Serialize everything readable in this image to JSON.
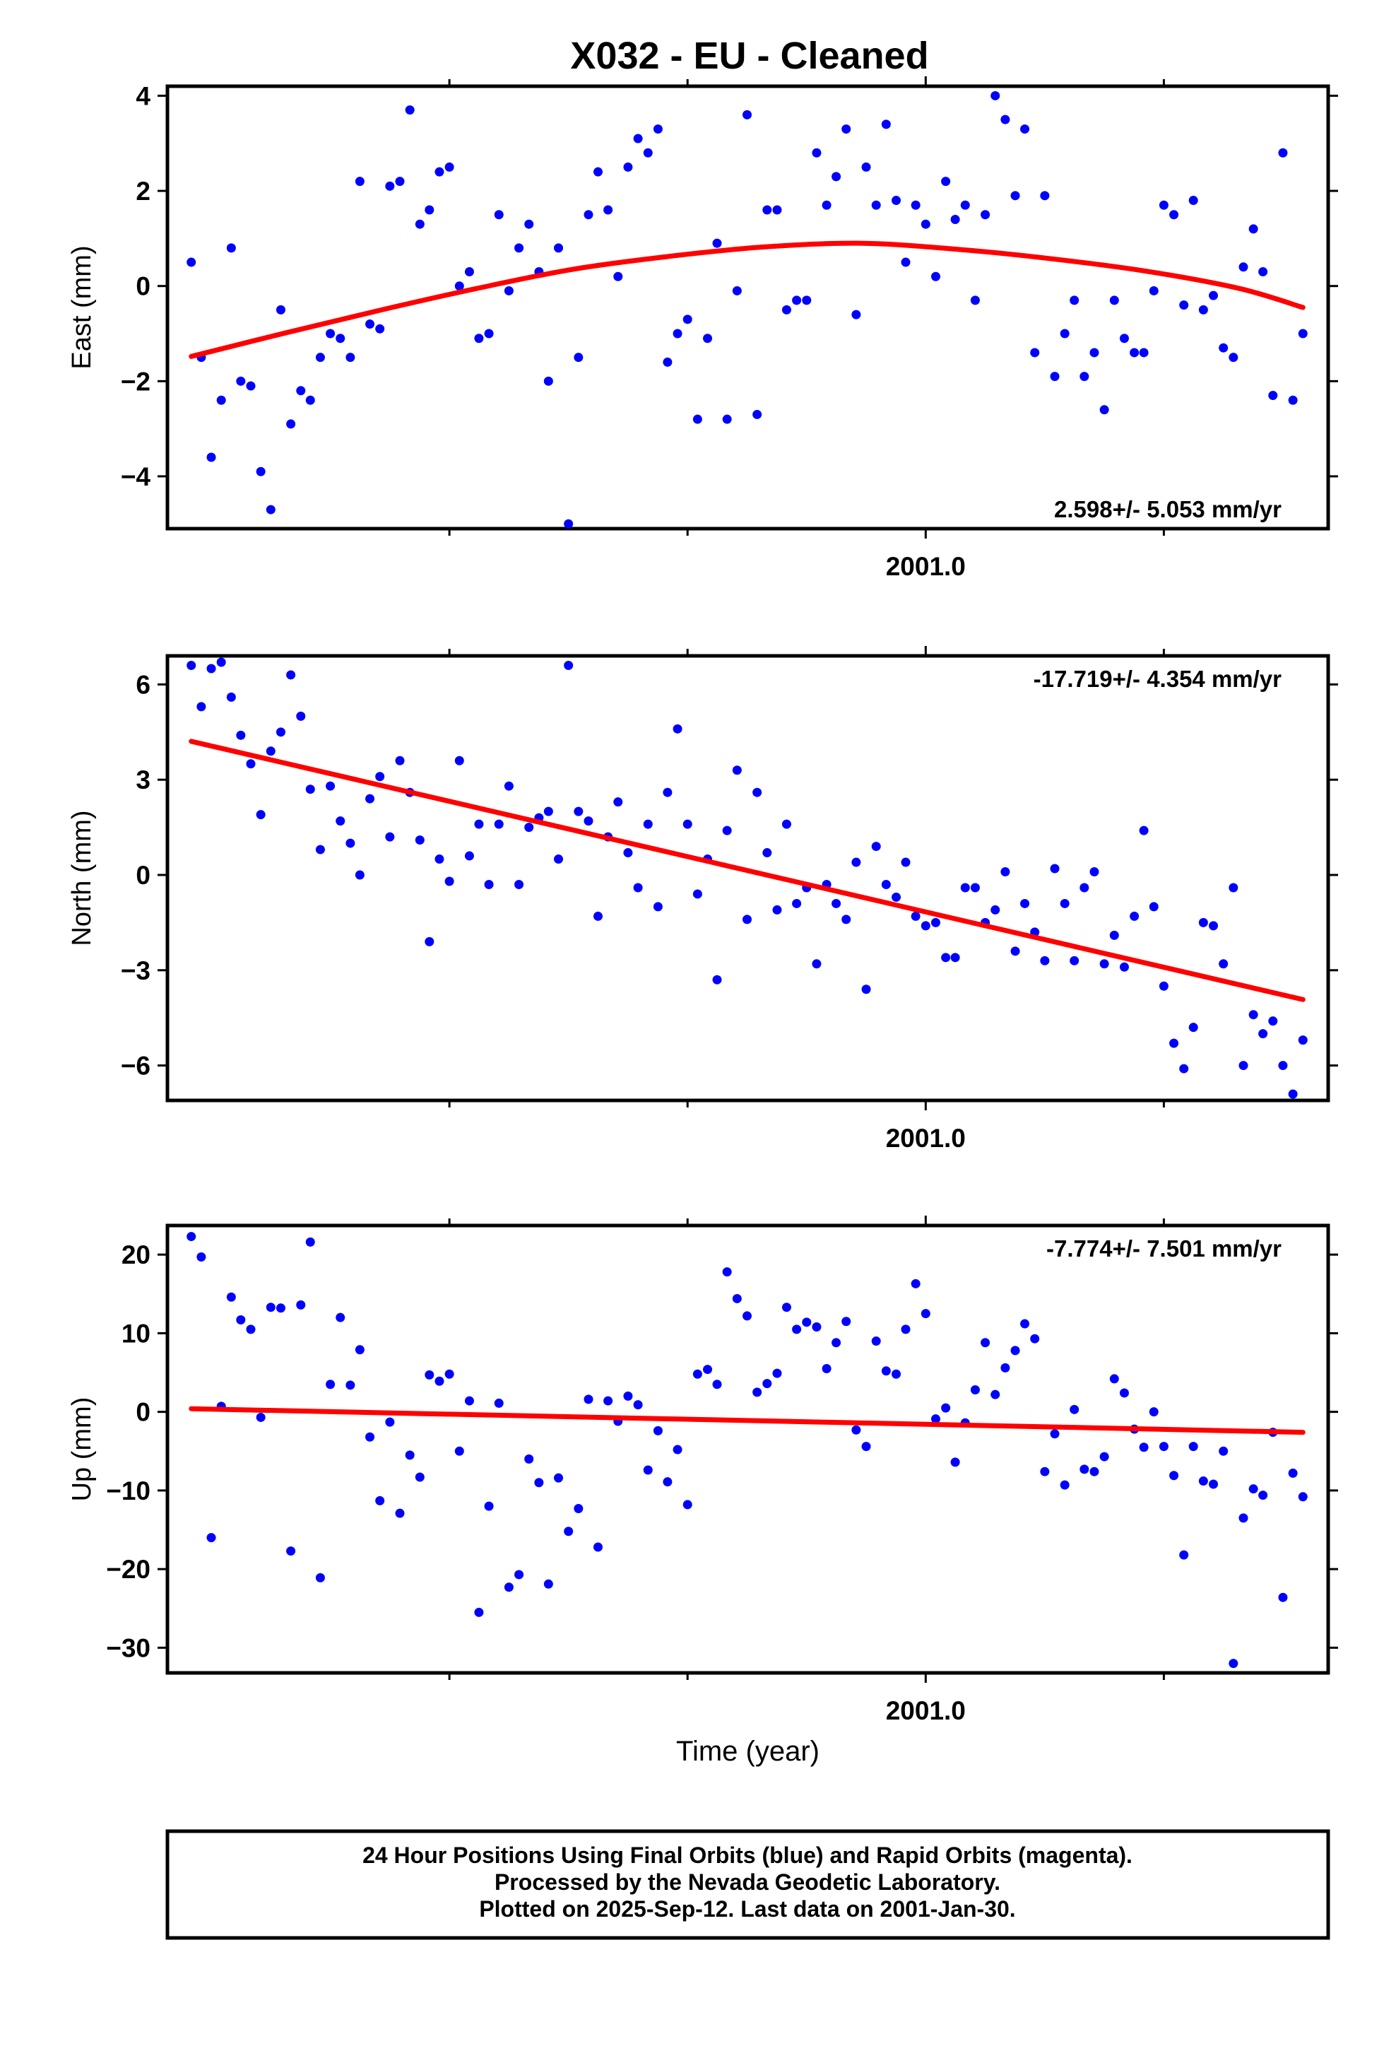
{
  "title": "X032  - EU - Cleaned",
  "footer": {
    "lines": [
      "24 Hour Positions Using Final Orbits (blue) and Rapid Orbits (magenta).",
      "Processed by the Nevada Geodetic Laboratory.",
      "Plotted on 2025-Sep-12. Last data on 2001-Jan-30."
    ]
  },
  "colors": {
    "points": "#0000ff",
    "fit": "#ff0000",
    "frame": "#000000"
  },
  "chart_data": [
    {
      "type": "scatter",
      "ylabel": "East (mm)",
      "xlabel": "",
      "x_tick_label": "2001.0",
      "x_tick_value": 2001.0,
      "xlim": [
        2000.8408,
        2001.0845
      ],
      "ylim": [
        -5.1,
        4.2
      ],
      "yticks": [
        4,
        2,
        0,
        -2,
        -4
      ],
      "ytick_labels": [
        "4",
        "2",
        "0",
        "−2",
        "−4"
      ],
      "rate_label": "2.598+/- 5.053 mm/yr",
      "rate_position": "bottom-right",
      "x": [
        2000.8458,
        2000.8479,
        2000.85,
        2000.8521,
        2000.8542,
        2000.8562,
        2000.8583,
        2000.8604,
        2000.8625,
        2000.8646,
        2000.8667,
        2000.8688,
        2000.8708,
        2000.8729,
        2000.875,
        2000.8771,
        2000.8792,
        2000.8812,
        2000.8833,
        2000.8854,
        2000.8875,
        2000.8896,
        2000.8917,
        2000.8938,
        2000.8958,
        2000.8979,
        2000.9,
        2000.9021,
        2000.9042,
        2000.9062,
        2000.9083,
        2000.9104,
        2000.9125,
        2000.9146,
        2000.9167,
        2000.9188,
        2000.9208,
        2000.9229,
        2000.925,
        2000.9271,
        2000.9292,
        2000.9312,
        2000.9333,
        2000.9354,
        2000.9375,
        2000.9396,
        2000.9417,
        2000.9438,
        2000.9458,
        2000.9479,
        2000.95,
        2000.9521,
        2000.9542,
        2000.9562,
        2000.9583,
        2000.9604,
        2000.9625,
        2000.9646,
        2000.9667,
        2000.9688,
        2000.9708,
        2000.9729,
        2000.975,
        2000.9771,
        2000.9792,
        2000.9812,
        2000.9833,
        2000.9854,
        2000.9875,
        2000.9896,
        2000.9917,
        2000.9938,
        2000.9958,
        2000.9979,
        2001.0,
        2001.0021,
        2001.0042,
        2001.0062,
        2001.0083,
        2001.0104,
        2001.0125,
        2001.0146,
        2001.0167,
        2001.0188,
        2001.0208,
        2001.0229,
        2001.025,
        2001.0271,
        2001.0292,
        2001.0312,
        2001.0333,
        2001.0354,
        2001.0375,
        2001.0396,
        2001.0417,
        2001.0438,
        2001.0458,
        2001.0479,
        2001.05,
        2001.0521,
        2001.0542,
        2001.0562,
        2001.0583,
        2001.0604,
        2001.0625,
        2001.0646,
        2001.0667,
        2001.0688,
        2001.0708,
        2001.0729,
        2001.075,
        2001.0771,
        2001.0792
      ],
      "y": [
        0.5,
        -1.5,
        -3.6,
        -2.4,
        0.8,
        -2.0,
        -2.1,
        -3.9,
        -4.7,
        -0.5,
        -2.9,
        -2.2,
        -2.4,
        -1.5,
        -1.0,
        -1.1,
        -1.5,
        2.2,
        -0.8,
        -0.9,
        2.1,
        2.2,
        3.7,
        1.3,
        1.6,
        2.4,
        2.5,
        0.0,
        0.3,
        -1.1,
        -1.0,
        1.5,
        -0.1,
        0.8,
        1.3,
        0.3,
        -2.0,
        0.8,
        -5.0,
        -1.5,
        1.5,
        2.4,
        1.6,
        0.2,
        2.5,
        3.1,
        2.8,
        3.3,
        -1.6,
        -1.0,
        -0.7,
        -2.8,
        -1.1,
        0.9,
        -2.8,
        -0.1,
        3.6,
        -2.7,
        1.6,
        1.6,
        -0.5,
        -0.3,
        -0.3,
        2.8,
        1.7,
        2.3,
        3.3,
        -0.6,
        2.5,
        1.7,
        3.4,
        1.8,
        0.5,
        1.7,
        1.3,
        0.2,
        2.2,
        1.4,
        1.7,
        -0.3,
        1.5,
        4.0,
        3.5,
        1.9,
        3.3,
        -1.4,
        1.9,
        -1.9,
        -1.0,
        -0.3,
        -1.9,
        -1.4,
        -2.6,
        -0.3,
        -1.1,
        -1.4,
        -1.4,
        -0.1,
        1.7,
        1.5,
        -0.4,
        1.8,
        -0.5,
        -0.2,
        -1.3,
        -1.5,
        0.4,
        1.2,
        0.3,
        -2.3,
        2.8,
        -2.4,
        -1.0
      ],
      "fit": {
        "x": [
          2000.8458,
          2000.8658,
          2000.8858,
          2000.9058,
          2000.9258,
          2000.9458,
          2000.9658,
          2000.9858,
          2001.0058,
          2001.0258,
          2001.0458,
          2001.0658,
          2001.0792
        ],
        "y": [
          -1.48,
          -0.98,
          -0.5,
          -0.05,
          0.35,
          0.62,
          0.82,
          0.9,
          0.78,
          0.58,
          0.32,
          -0.05,
          -0.45
        ]
      }
    },
    {
      "type": "scatter",
      "ylabel": "North (mm)",
      "xlabel": "",
      "x_tick_label": "2001.0",
      "x_tick_value": 2001.0,
      "xlim": [
        2000.8408,
        2001.0845
      ],
      "ylim": [
        -7.1,
        6.9
      ],
      "yticks": [
        6,
        3,
        0,
        -3,
        -6
      ],
      "ytick_labels": [
        "6",
        "3",
        "0",
        "−3",
        "−6"
      ],
      "rate_label": "-17.719+/- 4.354 mm/yr",
      "rate_position": "top-right",
      "x": [
        2000.8458,
        2000.8479,
        2000.85,
        2000.8521,
        2000.8542,
        2000.8562,
        2000.8583,
        2000.8604,
        2000.8625,
        2000.8646,
        2000.8667,
        2000.8688,
        2000.8708,
        2000.8729,
        2000.875,
        2000.8771,
        2000.8792,
        2000.8812,
        2000.8833,
        2000.8854,
        2000.8875,
        2000.8896,
        2000.8917,
        2000.8938,
        2000.8958,
        2000.8979,
        2000.9,
        2000.9021,
        2000.9042,
        2000.9062,
        2000.9083,
        2000.9104,
        2000.9125,
        2000.9146,
        2000.9167,
        2000.9188,
        2000.9208,
        2000.9229,
        2000.925,
        2000.9271,
        2000.9292,
        2000.9312,
        2000.9333,
        2000.9354,
        2000.9375,
        2000.9396,
        2000.9417,
        2000.9438,
        2000.9458,
        2000.9479,
        2000.95,
        2000.9521,
        2000.9542,
        2000.9562,
        2000.9583,
        2000.9604,
        2000.9625,
        2000.9646,
        2000.9667,
        2000.9688,
        2000.9708,
        2000.9729,
        2000.975,
        2000.9771,
        2000.9792,
        2000.9812,
        2000.9833,
        2000.9854,
        2000.9875,
        2000.9896,
        2000.9917,
        2000.9938,
        2000.9958,
        2000.9979,
        2001.0,
        2001.0021,
        2001.0042,
        2001.0062,
        2001.0083,
        2001.0104,
        2001.0125,
        2001.0146,
        2001.0167,
        2001.0188,
        2001.0208,
        2001.0229,
        2001.025,
        2001.0271,
        2001.0292,
        2001.0312,
        2001.0333,
        2001.0354,
        2001.0375,
        2001.0396,
        2001.0417,
        2001.0438,
        2001.0458,
        2001.0479,
        2001.05,
        2001.0521,
        2001.0542,
        2001.0562,
        2001.0583,
        2001.0604,
        2001.0625,
        2001.0646,
        2001.0667,
        2001.0688,
        2001.0708,
        2001.0729,
        2001.075,
        2001.0771,
        2001.0792
      ],
      "y": [
        6.6,
        5.3,
        6.5,
        6.7,
        5.6,
        4.4,
        3.5,
        1.9,
        3.9,
        4.5,
        6.3,
        5.0,
        2.7,
        0.8,
        2.8,
        1.7,
        1.0,
        0.0,
        2.4,
        3.1,
        1.2,
        3.6,
        2.6,
        1.1,
        -2.1,
        0.5,
        -0.2,
        3.6,
        0.6,
        1.6,
        -0.3,
        1.6,
        2.8,
        -0.3,
        1.5,
        1.8,
        2.0,
        0.5,
        6.6,
        2.0,
        1.7,
        -1.3,
        1.2,
        2.3,
        0.7,
        -0.4,
        1.6,
        -1.0,
        2.6,
        4.6,
        1.6,
        -0.6,
        0.5,
        -3.3,
        1.4,
        3.3,
        -1.4,
        2.6,
        0.7,
        -1.1,
        1.6,
        -0.9,
        -0.4,
        -2.8,
        -0.3,
        -0.9,
        -1.4,
        0.4,
        -3.6,
        0.9,
        -0.3,
        -0.7,
        0.4,
        -1.3,
        -1.6,
        -1.5,
        -2.6,
        -2.6,
        -0.4,
        -0.4,
        -1.5,
        -1.1,
        0.1,
        -2.4,
        -0.9,
        -1.8,
        -2.7,
        0.2,
        -0.9,
        -2.7,
        -0.4,
        0.1,
        -2.8,
        -1.9,
        -2.9,
        -1.3,
        1.4,
        -1.0,
        -3.5,
        -5.3,
        -6.1,
        -4.8,
        -1.5,
        -1.6,
        -2.8,
        -0.4,
        -6.0,
        -4.4,
        -5.0,
        -4.6,
        -6.0,
        -6.9,
        -5.2
      ]
    },
    {
      "type": "scatter",
      "ylabel": "Up (mm)",
      "xlabel": "Time (year)",
      "x_tick_label": "2001.0",
      "x_tick_value": 2001.0,
      "xlim": [
        2000.8408,
        2001.0845
      ],
      "ylim": [
        -33.2,
        23.7
      ],
      "yticks": [
        20,
        10,
        0,
        -10,
        -20,
        -30
      ],
      "ytick_labels": [
        "20",
        "10",
        "0",
        "−10",
        "−20",
        "−30"
      ],
      "rate_label": "-7.774+/- 7.501 mm/yr",
      "rate_position": "top-right",
      "x": [
        2000.8458,
        2000.8479,
        2000.85,
        2000.8521,
        2000.8542,
        2000.8562,
        2000.8583,
        2000.8604,
        2000.8625,
        2000.8646,
        2000.8667,
        2000.8688,
        2000.8708,
        2000.8729,
        2000.875,
        2000.8771,
        2000.8792,
        2000.8812,
        2000.8833,
        2000.8854,
        2000.8875,
        2000.8896,
        2000.8917,
        2000.8938,
        2000.8958,
        2000.8979,
        2000.9,
        2000.9021,
        2000.9042,
        2000.9062,
        2000.9083,
        2000.9104,
        2000.9125,
        2000.9146,
        2000.9167,
        2000.9188,
        2000.9208,
        2000.9229,
        2000.925,
        2000.9271,
        2000.9292,
        2000.9312,
        2000.9333,
        2000.9354,
        2000.9375,
        2000.9396,
        2000.9417,
        2000.9438,
        2000.9458,
        2000.9479,
        2000.95,
        2000.9521,
        2000.9542,
        2000.9562,
        2000.9583,
        2000.9604,
        2000.9625,
        2000.9646,
        2000.9667,
        2000.9688,
        2000.9708,
        2000.9729,
        2000.975,
        2000.9771,
        2000.9792,
        2000.9812,
        2000.9833,
        2000.9854,
        2000.9875,
        2000.9896,
        2000.9917,
        2000.9938,
        2000.9958,
        2000.9979,
        2001.0,
        2001.0021,
        2001.0042,
        2001.0062,
        2001.0083,
        2001.0104,
        2001.0125,
        2001.0146,
        2001.0167,
        2001.0188,
        2001.0208,
        2001.0229,
        2001.025,
        2001.0271,
        2001.0292,
        2001.0312,
        2001.0333,
        2001.0354,
        2001.0375,
        2001.0396,
        2001.0417,
        2001.0438,
        2001.0458,
        2001.0479,
        2001.05,
        2001.0521,
        2001.0542,
        2001.0562,
        2001.0583,
        2001.0604,
        2001.0625,
        2001.0646,
        2001.0667,
        2001.0688,
        2001.0708,
        2001.0729,
        2001.075,
        2001.0771,
        2001.0792
      ],
      "y": [
        22.3,
        19.7,
        -16.0,
        0.7,
        14.6,
        11.7,
        10.5,
        -0.7,
        13.3,
        13.2,
        -17.7,
        13.6,
        21.6,
        -21.1,
        3.5,
        12.0,
        3.4,
        7.9,
        -3.2,
        -11.3,
        -1.3,
        -12.9,
        -5.5,
        -8.3,
        4.7,
        3.9,
        4.8,
        -5.0,
        1.4,
        -25.5,
        -12.0,
        1.1,
        -22.3,
        -20.7,
        -6.0,
        -9.0,
        -21.9,
        -8.4,
        -15.2,
        -12.3,
        1.6,
        -17.2,
        1.4,
        -1.2,
        2.0,
        0.9,
        -7.4,
        -2.4,
        -8.9,
        -4.8,
        -11.8,
        4.8,
        5.4,
        3.5,
        17.8,
        14.4,
        12.2,
        2.5,
        3.6,
        4.9,
        13.3,
        10.5,
        11.4,
        10.8,
        5.5,
        8.8,
        11.5,
        -2.3,
        -4.4,
        9.0,
        5.2,
        4.8,
        10.5,
        16.3,
        12.5,
        -0.9,
        0.5,
        -6.4,
        -1.4,
        2.8,
        8.8,
        2.2,
        5.6,
        7.8,
        11.2,
        9.3,
        -7.6,
        -2.8,
        -9.3,
        0.3,
        -7.3,
        -7.6,
        -5.7,
        4.2,
        2.4,
        -2.2,
        -4.5,
        0.0,
        -4.4,
        -8.1,
        -18.2,
        -4.4,
        -8.8,
        -9.2,
        -5.0,
        -32.0,
        -13.5,
        -9.8,
        -10.6,
        -2.6,
        -23.6,
        -7.8,
        -10.8
      ],
      "fit": {
        "x": [
          2000.8458,
          2001.0792
        ],
        "y": [
          0.4,
          -2.6
        ]
      }
    }
  ]
}
